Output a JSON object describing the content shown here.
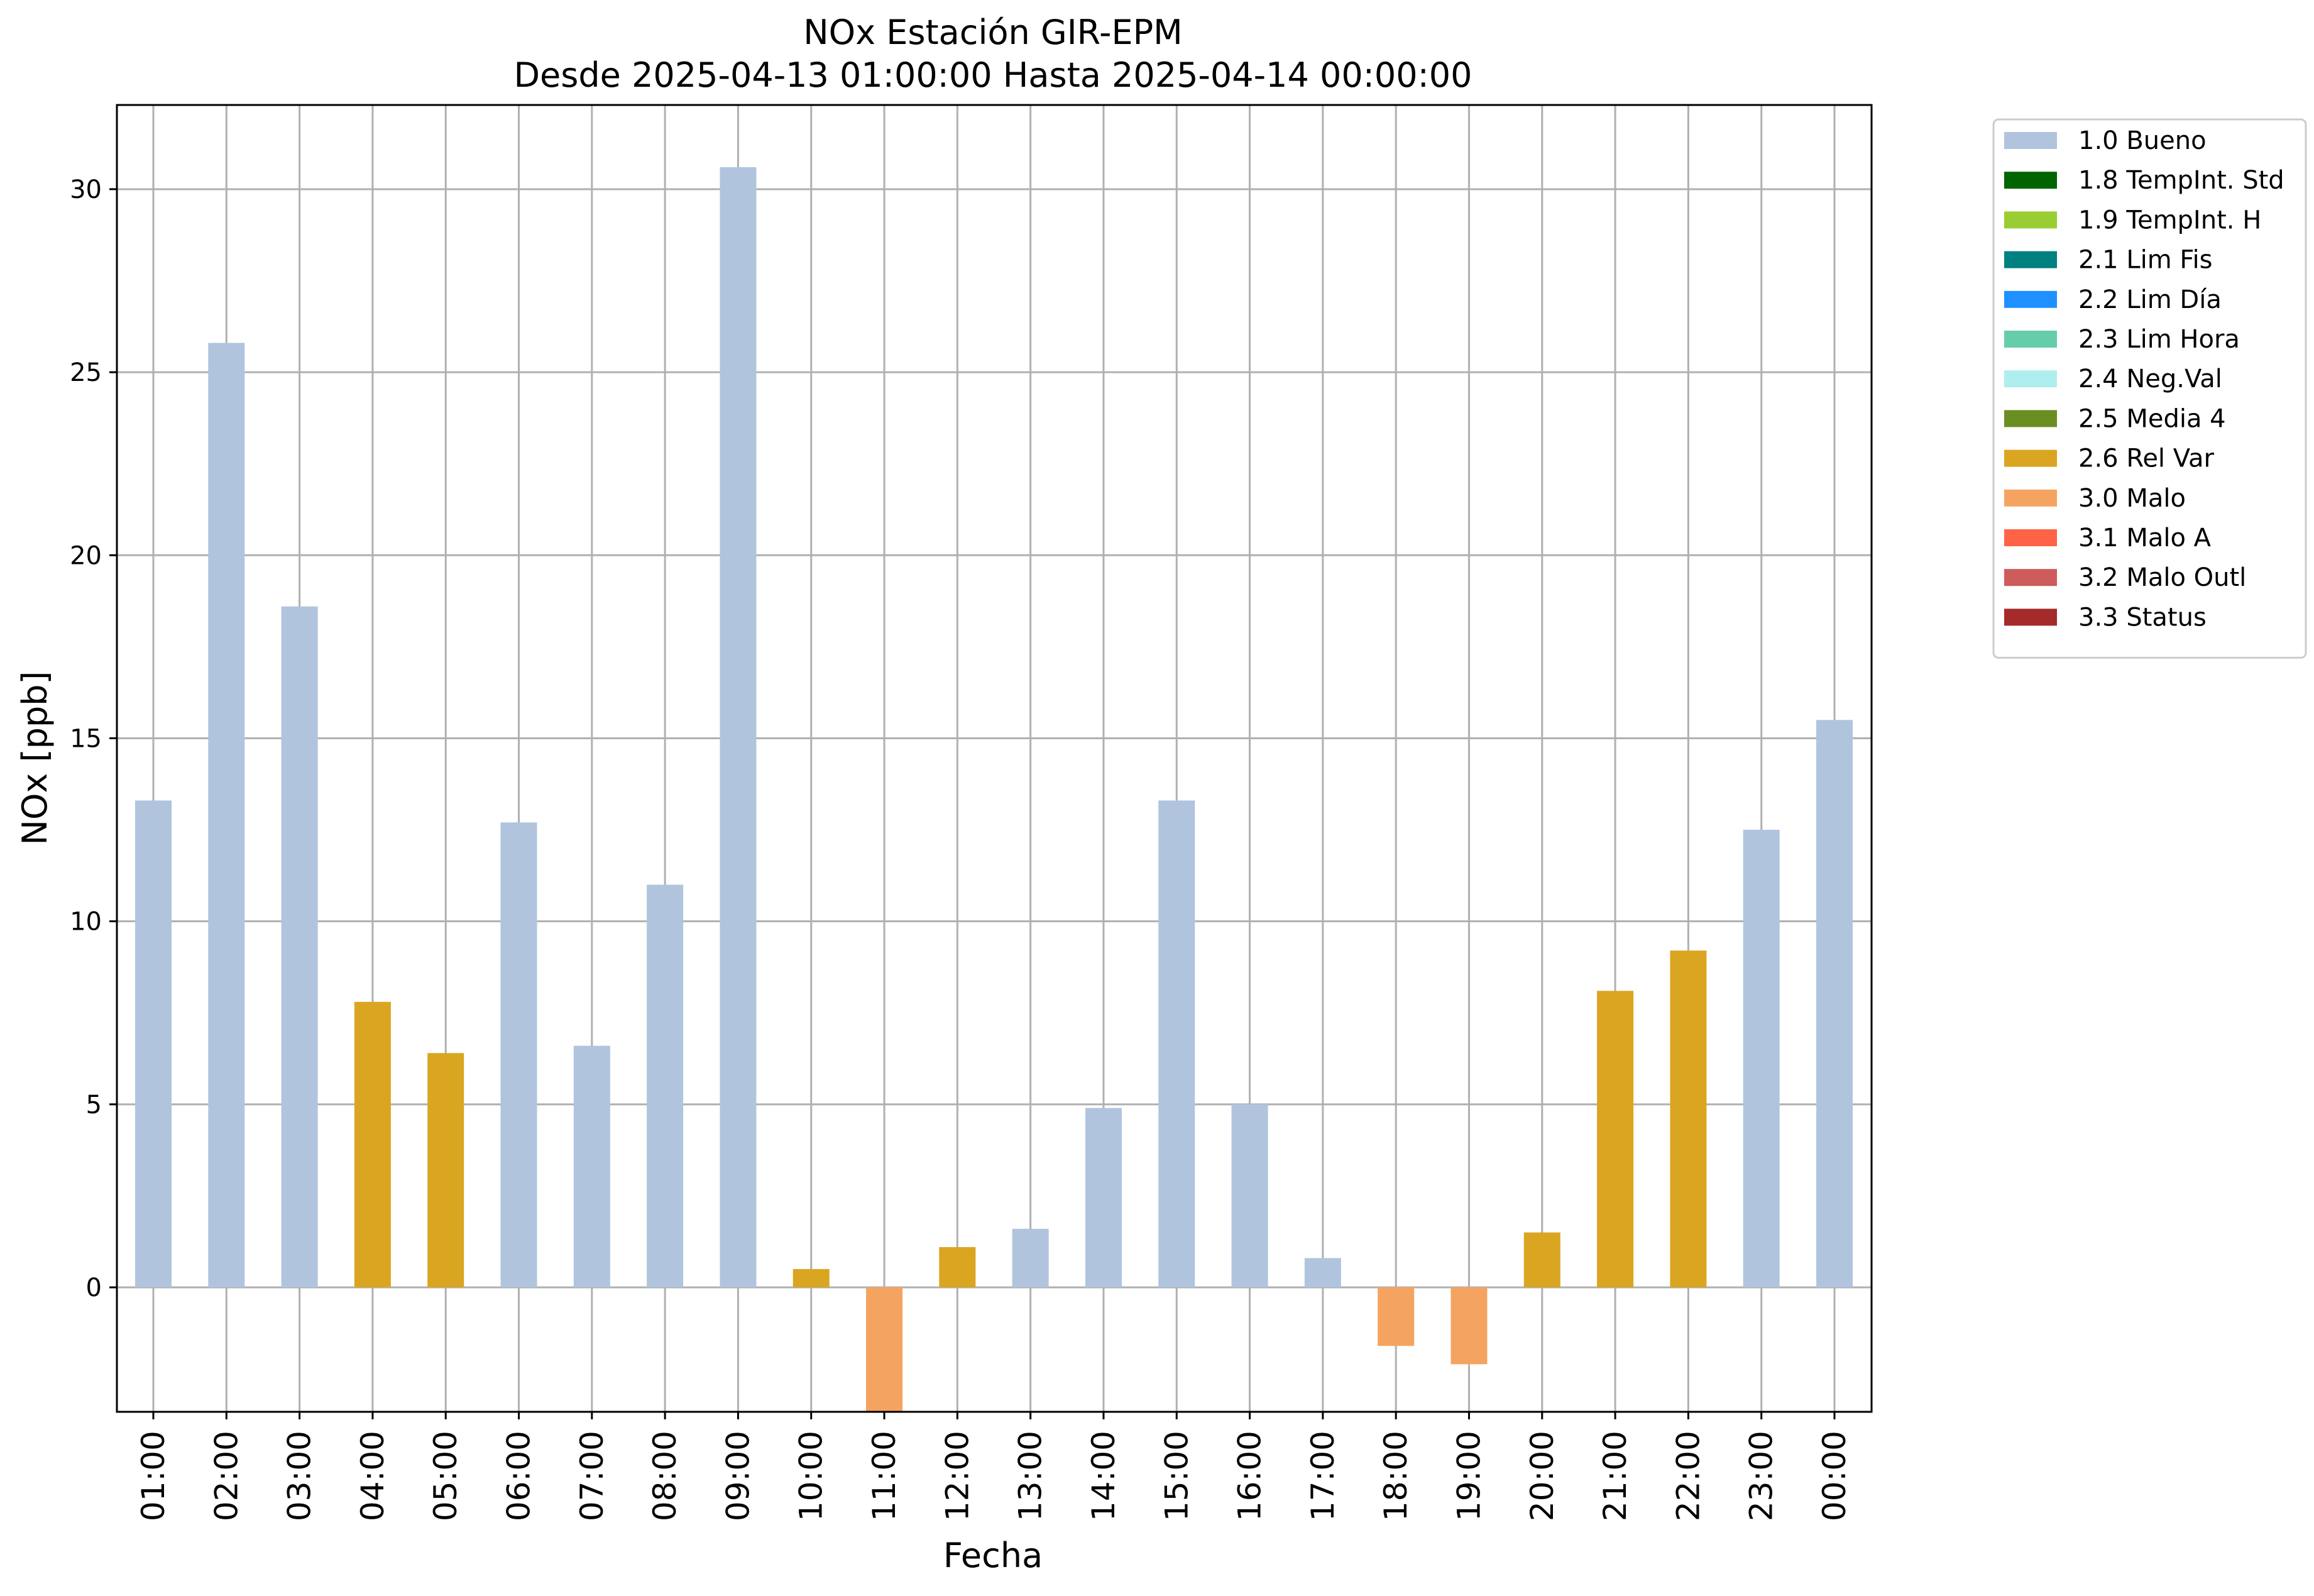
{
  "chart_data": {
    "type": "bar",
    "title_line1": "NOx Estación GIR-EPM",
    "title_line2": "Desde 2025-04-13 01:00:00 Hasta 2025-04-14 00:00:00",
    "xlabel": "Fecha",
    "ylabel": "NOx [ppb]",
    "ylim": [
      -3.4,
      32.3
    ],
    "yticks": [
      0,
      5,
      10,
      15,
      20,
      25,
      30
    ],
    "grid": true,
    "legend_position": "outside-top-right",
    "categories": [
      "01:00",
      "02:00",
      "03:00",
      "04:00",
      "05:00",
      "06:00",
      "07:00",
      "08:00",
      "09:00",
      "10:00",
      "11:00",
      "12:00",
      "13:00",
      "14:00",
      "15:00",
      "16:00",
      "17:00",
      "18:00",
      "19:00",
      "20:00",
      "21:00",
      "22:00",
      "23:00",
      "00:00"
    ],
    "values": [
      13.3,
      25.8,
      18.6,
      7.8,
      6.4,
      12.7,
      6.6,
      11.0,
      30.6,
      0.5,
      -3.4,
      1.1,
      1.6,
      4.9,
      13.3,
      5.0,
      0.8,
      -1.6,
      -2.1,
      1.5,
      8.1,
      9.2,
      12.5,
      15.5
    ],
    "flags": [
      "1.0 Bueno",
      "1.0 Bueno",
      "1.0 Bueno",
      "2.6 Rel Var",
      "2.6 Rel Var",
      "1.0 Bueno",
      "1.0 Bueno",
      "1.0 Bueno",
      "1.0 Bueno",
      "2.6 Rel Var",
      "3.0 Malo",
      "2.6 Rel Var",
      "1.0 Bueno",
      "1.0 Bueno",
      "1.0 Bueno",
      "1.0 Bueno",
      "1.0 Bueno",
      "3.0 Malo",
      "3.0 Malo",
      "2.6 Rel Var",
      "2.6 Rel Var",
      "2.6 Rel Var",
      "1.0 Bueno",
      "1.0 Bueno"
    ],
    "legend": [
      {
        "name": "1.0 Bueno",
        "color": "#b0c4de"
      },
      {
        "name": "1.8 TempInt. Std",
        "color": "#006400"
      },
      {
        "name": "1.9 TempInt. H",
        "color": "#9acd32"
      },
      {
        "name": "2.1 Lim Fis",
        "color": "#008080"
      },
      {
        "name": "2.2 Lim Día",
        "color": "#1e90ff"
      },
      {
        "name": "2.3 Lim Hora",
        "color": "#66cdaa"
      },
      {
        "name": "2.4 Neg.Val",
        "color": "#afeeee"
      },
      {
        "name": "2.5 Media 4",
        "color": "#6b8e23"
      },
      {
        "name": "2.6 Rel Var",
        "color": "#daa520"
      },
      {
        "name": "3.0 Malo",
        "color": "#f4a460"
      },
      {
        "name": "3.1 Malo A",
        "color": "#ff6347"
      },
      {
        "name": "3.2 Malo Outl",
        "color": "#cd5c5c"
      },
      {
        "name": "3.3 Status",
        "color": "#a52a2a"
      }
    ]
  }
}
